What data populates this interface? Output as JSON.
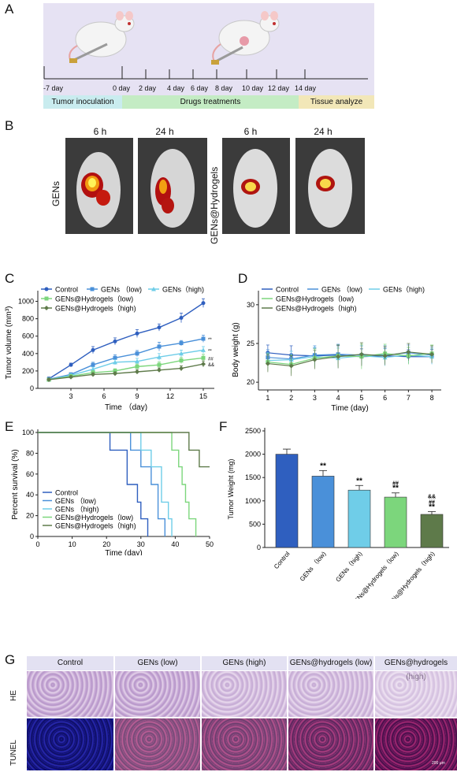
{
  "panels": {
    "A": {
      "letter": "A",
      "days": [
        "-7 day",
        "0 day",
        "2 day",
        "4 day",
        "6 day",
        "8 day",
        "10 day",
        "12 day",
        "14 day"
      ],
      "phases": [
        {
          "label": "Tumor inoculation",
          "color": "#c9ecef"
        },
        {
          "label": "Drugs treatments",
          "color": "#c4ecc4"
        },
        {
          "label": "Tissue analyze",
          "color": "#f2e7b8"
        }
      ]
    },
    "B": {
      "letter": "B",
      "times": [
        "6 h",
        "24 h",
        "6 h",
        "24 h"
      ],
      "group_labels": [
        "GENs",
        "GENs@Hydrogels"
      ]
    },
    "C": {
      "letter": "C",
      "legend": [
        "Control",
        "GENs （low)",
        "GENs（high)",
        "GENs@Hydrogels（low)",
        "GENs@Hydrogels（high)"
      ],
      "ylabel": "Tumor volume (mm³)",
      "xlabel": "Time （day)",
      "sig_marks": [
        "**",
        "##",
        "&&"
      ]
    },
    "D": {
      "letter": "D",
      "legend": [
        "Control",
        "GENs （low)",
        "GENs（high)",
        "GENs@Hydrogels（low)",
        "GENs@Hydrogels（high)"
      ],
      "ylabel": "Body weight (g)",
      "xlabel": "Time (day)"
    },
    "E": {
      "letter": "E",
      "legend": [
        "Control",
        "GENs （low)",
        "GENs （high)",
        "GENs@Hydrogels（low)",
        "GENs@Hydrogels（high)"
      ],
      "ylabel": "Percent survival (%)",
      "xlabel": "Time (day)"
    },
    "F": {
      "letter": "F",
      "ylabel": "Tumor Weight (mg)",
      "categories": [
        "Control",
        "GENs （low)",
        "GENs（high)",
        "GENs@Hydrogels（low)",
        "GENs@Hydrogels（high)"
      ],
      "sig": [
        "",
        "**",
        "**",
        "##\n**",
        "&&\n##\n**"
      ]
    },
    "G": {
      "letter": "G",
      "columns": [
        "Control",
        "GENs (low)",
        "GENs (high)",
        "GENs@hydrogels (low)",
        "GENs@hydrogels (high)"
      ],
      "rows": [
        "HE",
        "TUNEL"
      ],
      "scale_bar": "200 μm"
    }
  },
  "colors": {
    "control": "#2f5fbf",
    "gens_low": "#4a90d9",
    "gens_high": "#6fcde8",
    "hyd_low": "#7cd67c",
    "hyd_high": "#5e7a4a"
  },
  "chart_data": [
    {
      "id": "C",
      "type": "line",
      "x": [
        1,
        3,
        5,
        7,
        9,
        11,
        13,
        15
      ],
      "series": [
        {
          "name": "Control",
          "values": [
            110,
            270,
            440,
            540,
            630,
            700,
            810,
            980
          ],
          "errors": [
            20,
            20,
            40,
            40,
            45,
            40,
            55,
            50
          ]
        },
        {
          "name": "GENs （low)",
          "values": [
            105,
            160,
            270,
            350,
            400,
            480,
            520,
            570
          ],
          "errors": [
            15,
            20,
            30,
            35,
            35,
            50,
            30,
            40
          ]
        },
        {
          "name": "GENs（high)",
          "values": [
            100,
            150,
            220,
            300,
            310,
            360,
            400,
            440
          ],
          "errors": [
            15,
            20,
            25,
            30,
            35,
            40,
            40,
            40
          ]
        },
        {
          "name": "GENs@Hydrogels（low)",
          "values": [
            100,
            140,
            180,
            200,
            250,
            270,
            320,
            350
          ],
          "errors": [
            15,
            20,
            25,
            25,
            30,
            35,
            35,
            40
          ]
        },
        {
          "name": "GENs@Hydrogels（high)",
          "values": [
            100,
            130,
            160,
            170,
            190,
            210,
            230,
            280
          ],
          "errors": [
            15,
            15,
            20,
            20,
            25,
            25,
            30,
            35
          ]
        }
      ],
      "xticks": [
        3,
        6,
        9,
        12,
        15
      ],
      "yticks": [
        0,
        200,
        400,
        600,
        800,
        1000
      ],
      "xlim": [
        0,
        16
      ],
      "ylim": [
        0,
        1050
      ]
    },
    {
      "id": "D",
      "type": "line",
      "x": [
        1,
        2,
        3,
        4,
        5,
        6,
        7,
        8
      ],
      "series": [
        {
          "name": "Control",
          "values": [
            23.8,
            23.5,
            23.4,
            23.5,
            23.3,
            23.4,
            23.3,
            23.3
          ],
          "errors": [
            1.0,
            1.2,
            1.0,
            1.2,
            1.0,
            1.0,
            0.9,
            0.9
          ]
        },
        {
          "name": "GENs （low)",
          "values": [
            23.2,
            23.0,
            23.5,
            23.6,
            23.5,
            23.5,
            23.8,
            23.5
          ],
          "errors": [
            1.0,
            1.0,
            1.2,
            1.3,
            1.2,
            1.2,
            1.0,
            1.0
          ]
        },
        {
          "name": "GENs（high)",
          "values": [
            22.8,
            22.9,
            23.3,
            23.1,
            23.4,
            23.2,
            23.5,
            23.3
          ],
          "errors": [
            1.0,
            1.1,
            1.2,
            1.3,
            1.3,
            1.1,
            1.0,
            1.0
          ]
        },
        {
          "name": "GENs@Hydrogels（low)",
          "values": [
            22.6,
            22.3,
            23.1,
            23.4,
            23.3,
            23.7,
            23.4,
            23.7
          ],
          "errors": [
            1.1,
            1.2,
            1.2,
            1.4,
            1.6,
            1.2,
            1.1,
            1.1
          ]
        },
        {
          "name": "GENs@Hydrogels（high)",
          "values": [
            22.4,
            22.1,
            22.9,
            23.3,
            23.6,
            23.4,
            23.9,
            23.6
          ],
          "errors": [
            1.1,
            1.3,
            1.2,
            1.5,
            1.5,
            1.2,
            1.1,
            1.1
          ]
        }
      ],
      "xticks": [
        1,
        2,
        3,
        4,
        5,
        6,
        7,
        8
      ],
      "yticks": [
        20,
        25,
        30
      ],
      "xlim": [
        0.6,
        8.4
      ],
      "ylim": [
        19,
        31
      ]
    },
    {
      "id": "E",
      "type": "line",
      "step": true,
      "series": [
        {
          "name": "Control",
          "points": [
            [
              0,
              100
            ],
            [
              21,
              100
            ],
            [
              21,
              83
            ],
            [
              26,
              83
            ],
            [
              26,
              50
            ],
            [
              29,
              50
            ],
            [
              29,
              33
            ],
            [
              30,
              33
            ],
            [
              30,
              17
            ],
            [
              32,
              17
            ],
            [
              32,
              0
            ]
          ]
        },
        {
          "name": "GENs （low)",
          "points": [
            [
              0,
              100
            ],
            [
              0,
              100
            ],
            [
              27,
              100
            ],
            [
              27,
              83
            ],
            [
              30,
              83
            ],
            [
              30,
              67
            ],
            [
              33,
              67
            ],
            [
              33,
              50
            ],
            [
              35,
              50
            ],
            [
              35,
              17
            ],
            [
              37,
              17
            ],
            [
              37,
              0
            ]
          ]
        },
        {
          "name": "GENs （high)",
          "points": [
            [
              0,
              100
            ],
            [
              30,
              100
            ],
            [
              30,
              83
            ],
            [
              33,
              83
            ],
            [
              33,
              67
            ],
            [
              36,
              67
            ],
            [
              36,
              33
            ],
            [
              38,
              33
            ],
            [
              38,
              17
            ],
            [
              39,
              17
            ],
            [
              39,
              0
            ]
          ]
        },
        {
          "name": "GENs@Hydrogels（low)",
          "points": [
            [
              0,
              100
            ],
            [
              39,
              100
            ],
            [
              39,
              83
            ],
            [
              41,
              83
            ],
            [
              41,
              67
            ],
            [
              42,
              67
            ],
            [
              42,
              50
            ],
            [
              43,
              50
            ],
            [
              43,
              33
            ],
            [
              44,
              33
            ],
            [
              44,
              17
            ],
            [
              46,
              17
            ],
            [
              46,
              0
            ]
          ]
        },
        {
          "name": "GENs@Hydrogels（high)",
          "points": [
            [
              0,
              100
            ],
            [
              44,
              100
            ],
            [
              44,
              83
            ],
            [
              47,
              83
            ],
            [
              47,
              67
            ],
            [
              50,
              67
            ]
          ]
        }
      ],
      "xticks": [
        0,
        10,
        20,
        30,
        40,
        50
      ],
      "yticks": [
        0,
        20,
        40,
        60,
        80,
        100
      ],
      "xlim": [
        0,
        50
      ],
      "ylim": [
        0,
        100
      ]
    },
    {
      "id": "F",
      "type": "bar",
      "categories": [
        "Control",
        "GENs （low)",
        "GENs（high)",
        "GENs@Hydrogels（low)",
        "GENs@Hydrogels（high)"
      ],
      "values": [
        2000,
        1530,
        1230,
        1080,
        710
      ],
      "errors": [
        110,
        120,
        100,
        90,
        60
      ],
      "yticks": [
        0,
        500,
        1000,
        1500,
        2000,
        2500
      ],
      "ylim": [
        0,
        2500
      ]
    }
  ]
}
